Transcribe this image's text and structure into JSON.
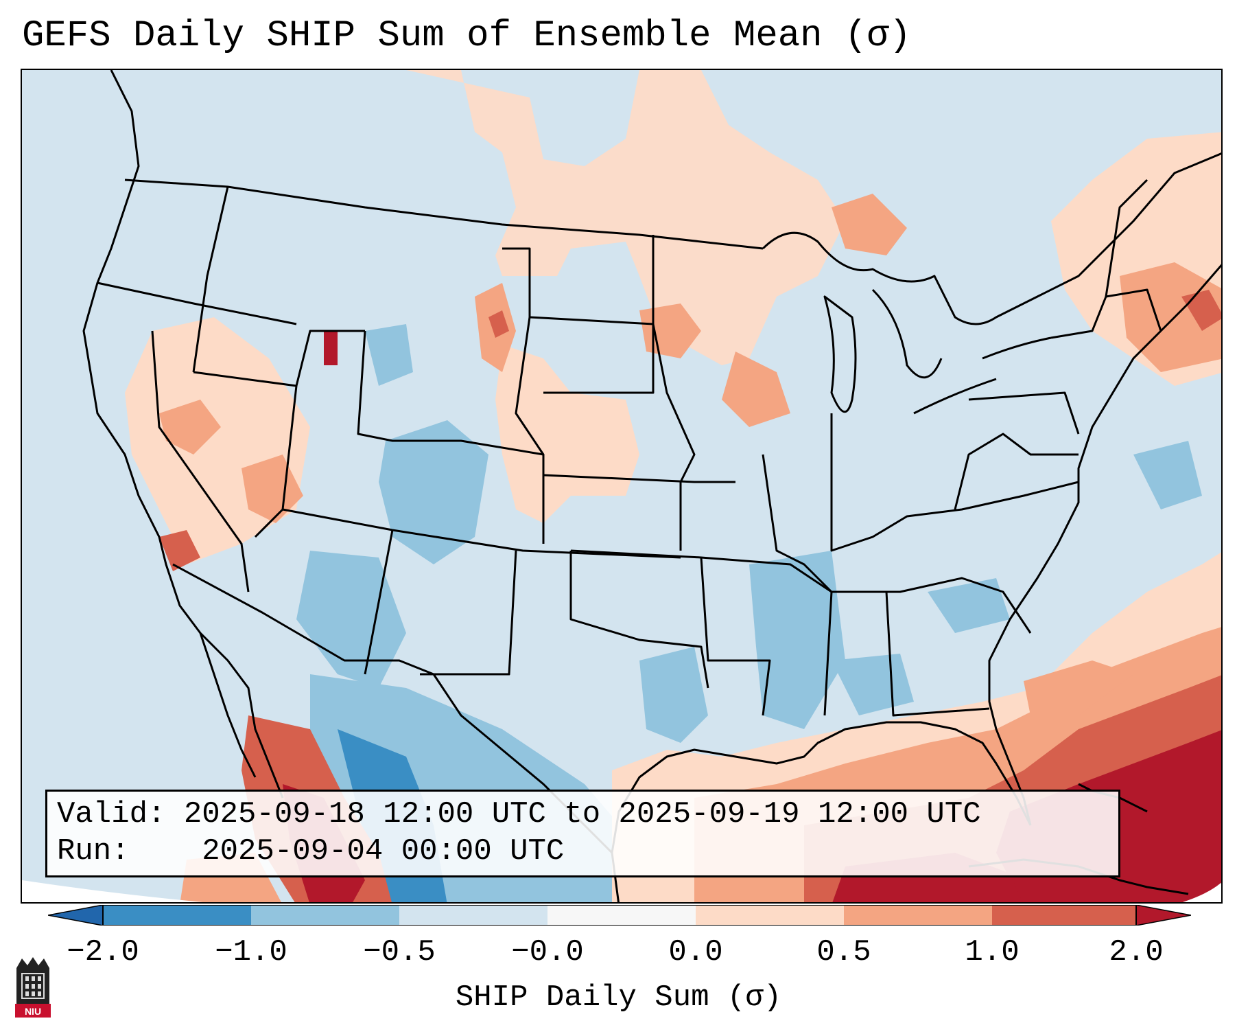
{
  "title": "GEFS Daily SHIP Sum of Ensemble Mean (σ)",
  "info_box": {
    "valid_label": "Valid:",
    "valid_value": "2025-09-18 12:00 UTC to 2025-09-19 12:00 UTC",
    "run_label": "Run:",
    "run_value": "2025-09-04 00:00 UTC"
  },
  "colorbar": {
    "label": "SHIP Daily Sum (σ)",
    "ticks": [
      "−2.0",
      "−1.0",
      "−0.5",
      "−0.0",
      "0.0",
      "0.5",
      "1.0",
      "2.0"
    ],
    "colors": [
      "#3a8ec4",
      "#92c4de",
      "#d3e4ef",
      "#f7f7f7",
      "#fddbc7",
      "#f4a582",
      "#d6604d",
      "#b2182b"
    ],
    "extend_low_color": "#2166ac",
    "extend_high_color": "#b2182b"
  },
  "logo": {
    "text": "NIU"
  }
}
